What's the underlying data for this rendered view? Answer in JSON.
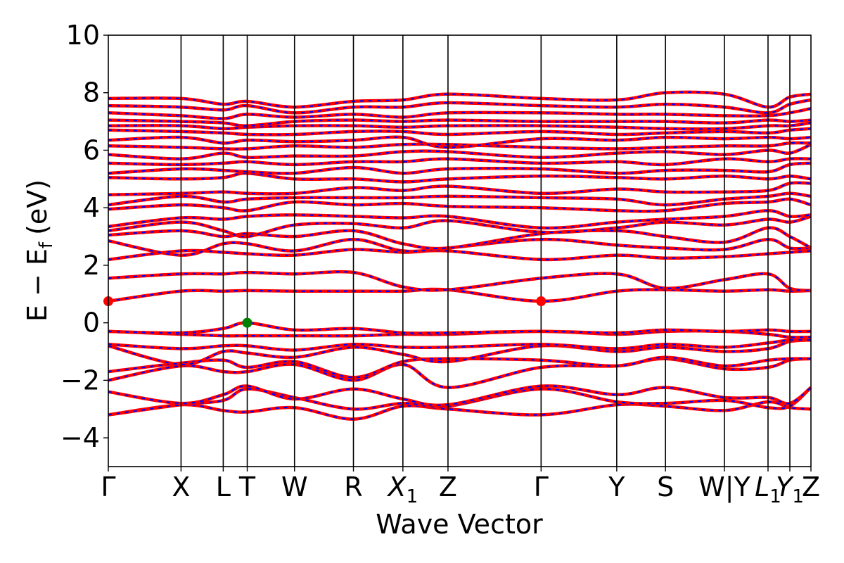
{
  "chart_data": {
    "type": "line",
    "xlabel": "Wave Vector",
    "ylabel": "E − E",
    "ylabel_sub": "f",
    "ylabel_unit": "(eV)",
    "ylim": [
      -5,
      10
    ],
    "yticks": [
      -4,
      -2,
      0,
      2,
      4,
      6,
      8,
      10
    ],
    "ytick_labels": [
      "−4",
      "−2",
      "0",
      "2",
      "4",
      "6",
      "8",
      "10"
    ],
    "grid": false,
    "kpath": [
      {
        "label": "Γ",
        "sub": "",
        "x": 0.0
      },
      {
        "label": "X",
        "sub": "",
        "x": 1.0
      },
      {
        "label": "L",
        "sub": "",
        "x": 1.58
      },
      {
        "label": "T",
        "sub": "",
        "x": 1.91
      },
      {
        "label": "W",
        "sub": "",
        "x": 2.56
      },
      {
        "label": "R",
        "sub": "",
        "x": 3.37
      },
      {
        "label": "X",
        "sub": "1",
        "x": 4.05
      },
      {
        "label": "Z",
        "sub": "",
        "x": 4.67
      },
      {
        "label": "Γ",
        "sub": "",
        "x": 5.95
      },
      {
        "label": "Y",
        "sub": "",
        "x": 6.99
      },
      {
        "label": "S",
        "sub": "",
        "x": 7.66
      },
      {
        "label": "W|Y",
        "sub": "",
        "x": 8.47
      },
      {
        "label": "L",
        "sub": "1",
        "x": 9.07
      },
      {
        "label": "Y",
        "sub": "1",
        "x": 9.37
      },
      {
        "label": "Z",
        "sub": "",
        "x": 9.66
      }
    ],
    "xlim": [
      0,
      9.66
    ],
    "series_colors": {
      "spin_up": "#ff0000",
      "spin_down": "#0000ff"
    },
    "highlight_points": [
      {
        "name": "CBM",
        "x": 0.0,
        "y": 0.75,
        "color": "#ff0000"
      },
      {
        "name": "CBM",
        "x": 5.95,
        "y": 0.75,
        "color": "#ff0000"
      },
      {
        "name": "VBM",
        "x": 1.91,
        "y": 0.0,
        "color": "#008000"
      }
    ],
    "bands": [
      [
        -3.2,
        -2.85,
        -3.05,
        -3.1,
        -2.95,
        -3.35,
        -2.9,
        -3.0,
        -3.2,
        -2.85,
        -2.9,
        -3.05,
        -2.75,
        -2.95,
        -3.0
      ],
      [
        -3.2,
        -2.85,
        -2.7,
        -2.3,
        -2.6,
        -3.0,
        -2.8,
        -2.9,
        -2.3,
        -2.75,
        -2.8,
        -2.7,
        -2.95,
        -2.9,
        -2.25
      ],
      [
        -2.4,
        -2.8,
        -2.5,
        -2.2,
        -2.65,
        -2.3,
        -2.65,
        -2.85,
        -2.2,
        -2.5,
        -2.25,
        -2.6,
        -2.6,
        -2.8,
        -2.25
      ],
      [
        -2.0,
        -1.5,
        -1.7,
        -1.7,
        -1.45,
        -2.0,
        -1.45,
        -2.25,
        -1.55,
        -1.5,
        -1.25,
        -1.6,
        -1.55,
        -1.3,
        -1.25
      ],
      [
        -1.7,
        -1.4,
        -1.3,
        -1.55,
        -1.35,
        -1.9,
        -1.35,
        -1.25,
        -1.3,
        -1.5,
        -1.2,
        -1.5,
        -1.3,
        -1.25,
        -1.25
      ],
      [
        -0.8,
        -1.45,
        -1.0,
        -1.05,
        -1.2,
        -0.85,
        -1.1,
        -1.35,
        -0.8,
        -1.0,
        -0.85,
        -1.0,
        -0.9,
        -0.65,
        -0.6
      ],
      [
        -0.75,
        -0.9,
        -0.8,
        -0.8,
        -0.95,
        -0.75,
        -0.85,
        -0.85,
        -0.75,
        -0.9,
        -0.75,
        -0.85,
        -0.7,
        -0.6,
        -0.6
      ],
      [
        -0.3,
        -0.4,
        -0.45,
        -0.45,
        -0.45,
        -0.45,
        -0.4,
        -0.4,
        -0.3,
        -0.4,
        -0.3,
        -0.3,
        -0.4,
        -0.5,
        -0.5
      ],
      [
        -0.3,
        -0.35,
        -0.2,
        0.0,
        -0.25,
        -0.2,
        -0.35,
        -0.35,
        -0.3,
        -0.35,
        -0.25,
        -0.3,
        -0.25,
        -0.3,
        -0.3
      ],
      [
        0.75,
        1.1,
        1.1,
        1.12,
        1.1,
        1.1,
        1.1,
        1.15,
        0.75,
        1.1,
        1.15,
        1.1,
        1.15,
        1.1,
        1.12
      ],
      [
        1.55,
        1.7,
        1.7,
        1.75,
        1.7,
        1.75,
        1.25,
        1.15,
        1.55,
        1.7,
        1.2,
        1.5,
        1.7,
        1.2,
        1.12
      ],
      [
        2.2,
        2.5,
        2.45,
        2.4,
        2.35,
        2.55,
        2.45,
        2.5,
        2.2,
        2.35,
        2.25,
        2.3,
        2.4,
        2.45,
        2.5
      ],
      [
        2.85,
        2.35,
        2.75,
        2.75,
        2.5,
        2.9,
        2.5,
        2.6,
        2.9,
        2.7,
        2.6,
        2.55,
        2.9,
        2.6,
        2.6
      ],
      [
        3.05,
        3.2,
        3.0,
        3.1,
        3.0,
        3.2,
        2.75,
        2.6,
        3.1,
        3.2,
        3.0,
        2.8,
        3.3,
        3.0,
        2.6
      ],
      [
        3.2,
        3.5,
        3.2,
        3.0,
        3.4,
        3.45,
        3.3,
        3.55,
        3.15,
        3.3,
        3.5,
        3.4,
        3.6,
        3.5,
        3.7
      ],
      [
        3.35,
        3.65,
        3.6,
        3.7,
        3.75,
        3.7,
        3.65,
        3.7,
        3.3,
        3.5,
        3.6,
        3.7,
        3.9,
        3.7,
        3.75
      ],
      [
        3.95,
        4.1,
        4.0,
        3.9,
        4.2,
        4.1,
        4.15,
        4.05,
        4.0,
        3.9,
        3.9,
        4.15,
        4.2,
        4.3,
        4.1
      ],
      [
        4.1,
        4.4,
        4.2,
        4.3,
        4.35,
        4.35,
        4.35,
        4.4,
        4.35,
        4.3,
        4.1,
        4.3,
        4.4,
        4.5,
        4.4
      ],
      [
        4.45,
        4.5,
        4.55,
        4.5,
        4.5,
        4.7,
        4.6,
        4.75,
        4.5,
        4.65,
        4.55,
        4.55,
        4.6,
        4.85,
        4.85
      ],
      [
        5.05,
        5.0,
        5.05,
        5.2,
        5.0,
        5.0,
        4.9,
        5.0,
        5.1,
        5.05,
        5.0,
        5.1,
        5.0,
        5.1,
        5.0
      ],
      [
        5.2,
        5.35,
        5.3,
        5.25,
        5.2,
        5.4,
        5.2,
        5.35,
        5.35,
        5.2,
        5.3,
        5.3,
        5.25,
        5.5,
        5.55
      ],
      [
        5.55,
        5.5,
        5.55,
        5.6,
        5.5,
        5.6,
        5.6,
        5.7,
        5.55,
        5.6,
        5.5,
        5.7,
        5.6,
        5.7,
        5.7
      ],
      [
        5.85,
        5.7,
        5.9,
        5.75,
        5.8,
        5.8,
        5.95,
        5.95,
        5.75,
        5.9,
        5.95,
        5.85,
        6.0,
        5.9,
        6.2
      ],
      [
        6.15,
        6.1,
        6.05,
        6.05,
        6.15,
        6.1,
        6.2,
        6.2,
        6.1,
        6.05,
        6.1,
        6.15,
        6.15,
        6.25,
        6.25
      ],
      [
        6.35,
        6.45,
        6.25,
        6.35,
        6.3,
        6.35,
        6.45,
        6.1,
        6.4,
        6.35,
        6.45,
        6.4,
        6.45,
        6.4,
        6.45
      ],
      [
        6.7,
        6.65,
        6.6,
        6.55,
        6.55,
        6.65,
        6.65,
        6.55,
        6.65,
        6.55,
        6.6,
        6.65,
        6.6,
        6.7,
        6.75
      ],
      [
        6.85,
        6.85,
        6.75,
        6.8,
        6.85,
        6.85,
        6.8,
        6.85,
        6.85,
        6.8,
        6.75,
        6.75,
        6.85,
        6.85,
        6.95
      ],
      [
        7.05,
        7.0,
        6.95,
        6.85,
        7.0,
        7.05,
        7.0,
        7.05,
        7.0,
        7.0,
        7.0,
        6.95,
        7.05,
        7.0,
        7.05
      ],
      [
        7.3,
        7.2,
        7.1,
        7.25,
        7.15,
        7.25,
        7.15,
        7.3,
        7.3,
        7.25,
        7.25,
        7.2,
        7.2,
        7.3,
        7.45
      ],
      [
        7.55,
        7.5,
        7.4,
        7.55,
        7.3,
        7.5,
        7.5,
        7.65,
        7.55,
        7.5,
        7.6,
        7.5,
        7.3,
        7.6,
        7.75
      ],
      [
        7.8,
        7.8,
        7.6,
        7.7,
        7.5,
        7.7,
        7.75,
        7.95,
        7.8,
        7.75,
        8.0,
        7.95,
        7.5,
        7.85,
        7.95
      ]
    ]
  }
}
